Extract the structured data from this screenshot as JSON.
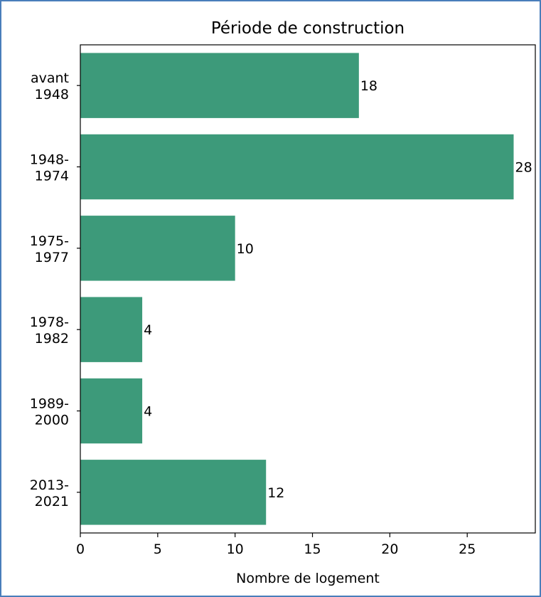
{
  "chart_data": {
    "type": "bar",
    "orientation": "horizontal",
    "title": "Période de construction",
    "xlabel": "Nombre de logement",
    "ylabel": "",
    "categories": [
      [
        "avant",
        "1948"
      ],
      [
        "1948-",
        "1974"
      ],
      [
        "1975-",
        "1977"
      ],
      [
        "1978-",
        "1982"
      ],
      [
        "1989-",
        "2000"
      ],
      [
        "2013-",
        "2021"
      ]
    ],
    "values": [
      18,
      28,
      10,
      4,
      4,
      12
    ],
    "data_labels": [
      "18",
      "28",
      "10",
      "4",
      "4",
      "12"
    ],
    "xlim": [
      0,
      29.4
    ],
    "xticks": [
      0,
      5,
      10,
      15,
      20,
      25
    ],
    "xtick_labels": [
      "0",
      "5",
      "10",
      "15",
      "20",
      "25"
    ],
    "grid": false,
    "bar_color": "#3d9a7a",
    "frame_color": "#4a7ebb"
  }
}
